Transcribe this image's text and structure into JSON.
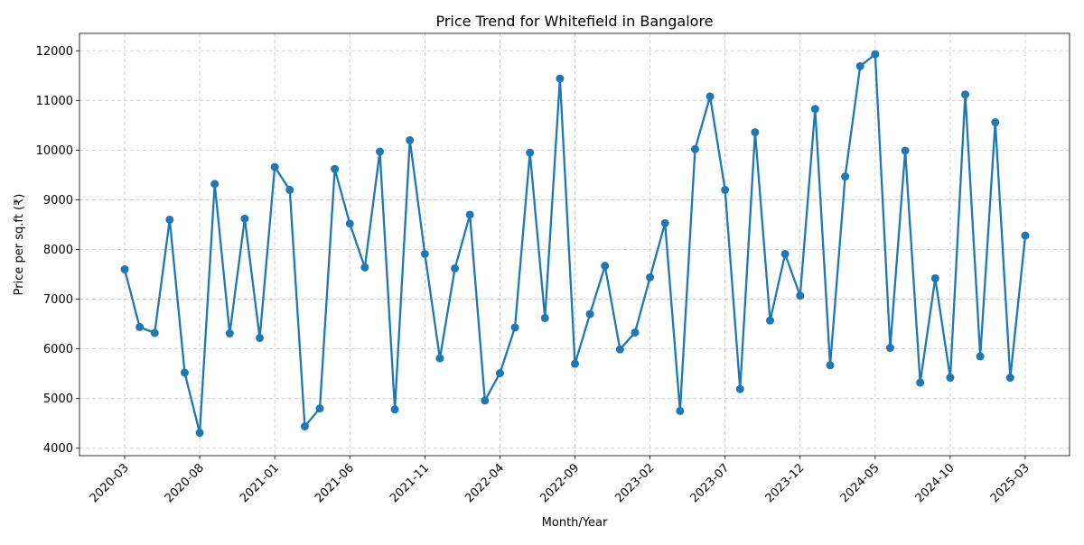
{
  "chart_data": {
    "type": "line",
    "title": "Price Trend for Whitefield in Bangalore",
    "xlabel": "Month/Year",
    "ylabel": "Price per sq.ft (₹)",
    "x_tick_labels": [
      "2020-03",
      "2020-08",
      "2021-01",
      "2021-06",
      "2021-11",
      "2022-04",
      "2022-09",
      "2023-02",
      "2023-07",
      "2023-12",
      "2024-05",
      "2024-10",
      "2025-03"
    ],
    "y_ticks": [
      4000,
      5000,
      6000,
      7000,
      8000,
      9000,
      10000,
      11000,
      12000
    ],
    "x_range": [
      "2020-03",
      "2025-03"
    ],
    "ylim": [
      3850,
      12350
    ],
    "grid": true,
    "line_color": "#1f77b4",
    "marker": "circle",
    "series": [
      {
        "x": [
          "2020-03",
          "2020-04",
          "2020-05",
          "2020-06",
          "2020-07",
          "2020-08",
          "2020-09",
          "2020-10",
          "2020-11",
          "2020-12",
          "2021-01",
          "2021-02",
          "2021-03",
          "2021-04",
          "2021-05",
          "2021-06",
          "2021-07",
          "2021-08",
          "2021-09",
          "2021-10",
          "2021-11",
          "2021-12",
          "2022-01",
          "2022-02",
          "2022-03",
          "2022-04",
          "2022-05",
          "2022-06",
          "2022-07",
          "2022-08",
          "2022-09",
          "2022-10",
          "2022-11",
          "2022-12",
          "2023-01",
          "2023-02",
          "2023-03",
          "2023-04",
          "2023-05",
          "2023-06",
          "2023-07",
          "2023-08",
          "2023-09",
          "2023-10",
          "2023-11",
          "2023-12",
          "2024-01",
          "2024-02",
          "2024-03",
          "2024-04",
          "2024-05",
          "2024-06",
          "2024-07",
          "2024-08",
          "2024-09",
          "2024-10",
          "2024-11",
          "2024-12",
          "2025-01",
          "2025-02",
          "2025-03"
        ],
        "values": [
          7600,
          6440,
          6320,
          8600,
          5520,
          4310,
          9320,
          6310,
          8620,
          6220,
          9660,
          9200,
          4440,
          4800,
          9620,
          8520,
          7640,
          9970,
          4780,
          10200,
          7910,
          5810,
          7620,
          8700,
          4960,
          5510,
          6430,
          9950,
          6620,
          11440,
          5700,
          6700,
          7670,
          5990,
          6330,
          7440,
          8530,
          4750,
          10020,
          11080,
          9200,
          5190,
          10360,
          6570,
          7910,
          7070,
          10830,
          5670,
          9470,
          11690,
          11930,
          6020,
          9990,
          5320,
          7420,
          5420,
          11120,
          5850,
          10560,
          5420,
          8280
        ]
      }
    ]
  }
}
